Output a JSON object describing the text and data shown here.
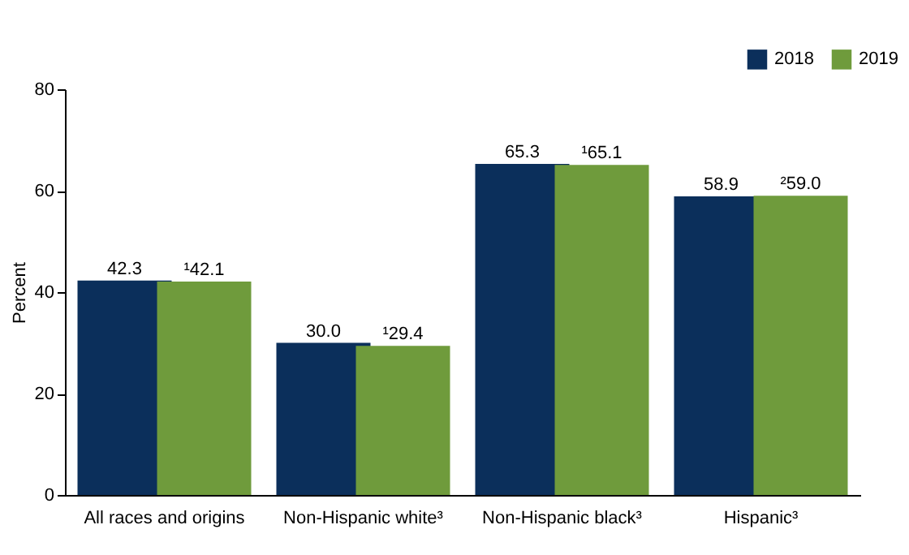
{
  "chart_data": {
    "type": "bar",
    "ylabel": "Percent",
    "categories": [
      "All races and origins",
      "Non-Hispanic white³",
      "Non-Hispanic black³",
      "Hispanic³"
    ],
    "series": [
      {
        "name": "2018",
        "color": "#0b2f5b",
        "values": [
          42.3,
          30.0,
          65.3,
          58.9
        ],
        "value_labels": [
          "42.3",
          "30.0",
          "65.3",
          "58.9"
        ]
      },
      {
        "name": "2019",
        "color": "#6f9b3c",
        "values": [
          42.1,
          29.4,
          65.1,
          59.0
        ],
        "value_labels": [
          "¹42.1",
          "¹29.4",
          "¹65.1",
          "²59.0"
        ]
      }
    ],
    "ylim": [
      0,
      80
    ],
    "yticks": [
      0,
      20,
      40,
      60,
      80
    ],
    "grid": false,
    "legend": "top right"
  }
}
